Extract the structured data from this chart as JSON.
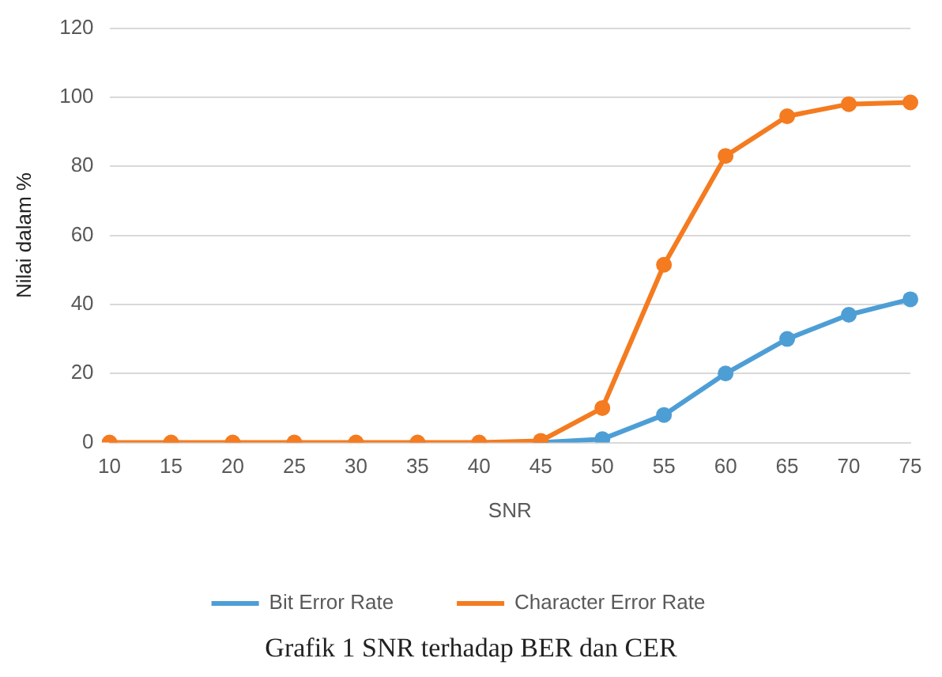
{
  "chart_data": {
    "type": "line",
    "xlabel": "SNR",
    "ylabel": "Nilai dalam %",
    "categories": [
      "10",
      "15",
      "20",
      "25",
      "30",
      "35",
      "40",
      "45",
      "50",
      "55",
      "60",
      "65",
      "70",
      "75"
    ],
    "series": [
      {
        "name": "Bit Error Rate",
        "color": "#4e9ed6",
        "values": [
          null,
          null,
          null,
          null,
          null,
          null,
          null,
          0,
          1,
          8,
          20,
          30,
          37,
          41.5
        ]
      },
      {
        "name": "Character Error Rate",
        "color": "#f47b20",
        "values": [
          0,
          0,
          0,
          0,
          0,
          0,
          0,
          0.5,
          10,
          51.5,
          83,
          94.5,
          98,
          98.5
        ]
      }
    ],
    "ylim": [
      0,
      120
    ],
    "yticks": [
      0,
      20,
      40,
      60,
      80,
      100,
      120
    ],
    "grid": "y",
    "legend": "bottom",
    "marker": "circle",
    "line_style": "solid",
    "annotations": [
      "Grafik 1 SNR terhadap BER dan CER"
    ]
  }
}
